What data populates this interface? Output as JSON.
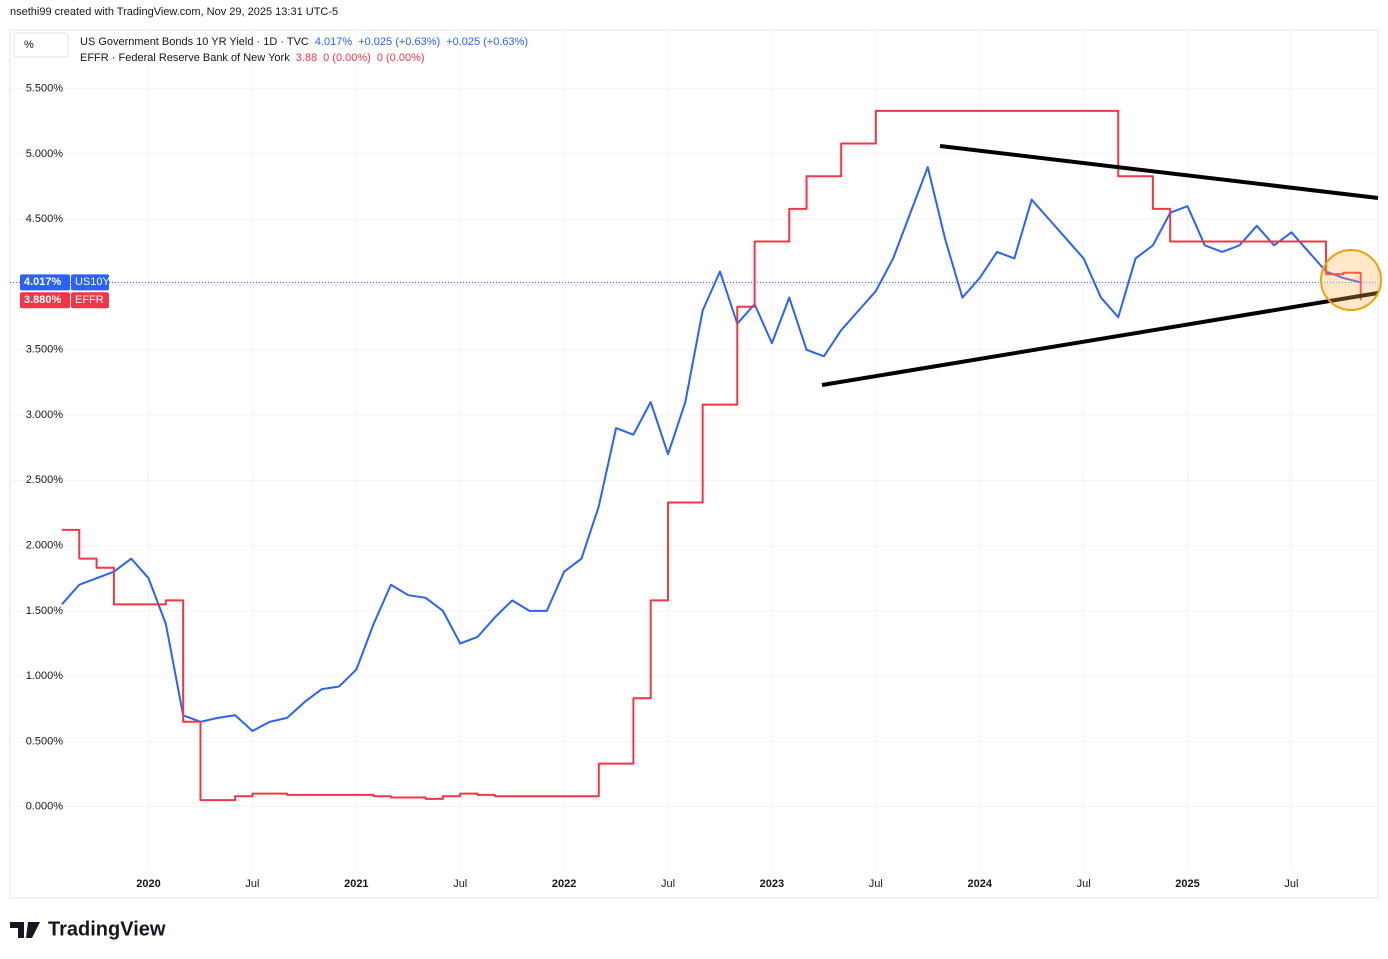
{
  "chart_data": {
    "type": "line",
    "title": "nsethi99 created with TradingView.com, Nov 29, 2025 13:31 UTC-5",
    "unit_button": "%",
    "brand": "TradingView",
    "x": [
      "2019-08",
      "2019-09",
      "2019-10",
      "2019-11",
      "2019-12",
      "2020-01",
      "2020-02",
      "2020-03",
      "2020-04",
      "2020-05",
      "2020-06",
      "2020-07",
      "2020-08",
      "2020-09",
      "2020-10",
      "2020-11",
      "2020-12",
      "2021-01",
      "2021-02",
      "2021-03",
      "2021-04",
      "2021-05",
      "2021-06",
      "2021-07",
      "2021-08",
      "2021-09",
      "2021-10",
      "2021-11",
      "2021-12",
      "2022-01",
      "2022-02",
      "2022-03",
      "2022-04",
      "2022-05",
      "2022-06",
      "2022-07",
      "2022-08",
      "2022-09",
      "2022-10",
      "2022-11",
      "2022-12",
      "2023-01",
      "2023-02",
      "2023-03",
      "2023-04",
      "2023-05",
      "2023-06",
      "2023-07",
      "2023-08",
      "2023-09",
      "2023-10",
      "2023-11",
      "2023-12",
      "2024-01",
      "2024-02",
      "2024-03",
      "2024-04",
      "2024-05",
      "2024-06",
      "2024-07",
      "2024-08",
      "2024-09",
      "2024-10",
      "2024-11",
      "2024-12",
      "2025-01",
      "2025-02",
      "2025-03",
      "2025-04",
      "2025-05",
      "2025-06",
      "2025-07",
      "2025-08",
      "2025-09",
      "2025-10",
      "2025-11"
    ],
    "series": [
      {
        "name": "US10Y",
        "description": "US Government Bonds 10 YR Yield · 1D · TVC",
        "color": "#2962ff",
        "legend_value": "4.017%",
        "changes": [
          "+0.025 (+0.63%)",
          "+0.025 (+0.63%)"
        ],
        "last_label": "4.017%",
        "values": [
          1.55,
          1.7,
          1.75,
          1.8,
          1.9,
          1.75,
          1.4,
          0.7,
          0.65,
          0.68,
          0.7,
          0.58,
          0.65,
          0.68,
          0.8,
          0.9,
          0.92,
          1.05,
          1.4,
          1.7,
          1.62,
          1.6,
          1.5,
          1.25,
          1.3,
          1.45,
          1.58,
          1.5,
          1.5,
          1.8,
          1.9,
          2.3,
          2.9,
          2.85,
          3.1,
          2.7,
          3.1,
          3.8,
          4.1,
          3.7,
          3.85,
          3.55,
          3.9,
          3.5,
          3.45,
          3.65,
          3.8,
          3.95,
          4.2,
          4.55,
          4.9,
          4.35,
          3.9,
          4.05,
          4.25,
          4.2,
          4.65,
          4.5,
          4.35,
          4.2,
          3.9,
          3.75,
          4.2,
          4.3,
          4.55,
          4.6,
          4.3,
          4.25,
          4.3,
          4.45,
          4.3,
          4.4,
          4.25,
          4.1,
          4.05,
          4.017
        ]
      },
      {
        "name": "EFFR",
        "description": "EFFR · Federal Reserve Bank of New York",
        "color": "#f23645",
        "legend_value": "3.88",
        "changes": [
          "0 (0.00%)",
          "0 (0.00%)"
        ],
        "last_label": "3.880%",
        "step": true,
        "values": [
          2.12,
          1.9,
          1.83,
          1.55,
          1.55,
          1.55,
          1.58,
          0.65,
          0.05,
          0.05,
          0.08,
          0.1,
          0.1,
          0.09,
          0.09,
          0.09,
          0.09,
          0.09,
          0.08,
          0.07,
          0.07,
          0.06,
          0.08,
          0.1,
          0.09,
          0.08,
          0.08,
          0.08,
          0.08,
          0.08,
          0.08,
          0.33,
          0.33,
          0.83,
          1.58,
          2.33,
          2.33,
          3.08,
          3.08,
          3.83,
          4.33,
          4.33,
          4.58,
          4.83,
          4.83,
          5.08,
          5.08,
          5.33,
          5.33,
          5.33,
          5.33,
          5.33,
          5.33,
          5.33,
          5.33,
          5.33,
          5.33,
          5.33,
          5.33,
          5.33,
          5.33,
          4.83,
          4.83,
          4.58,
          4.33,
          4.33,
          4.33,
          4.33,
          4.33,
          4.33,
          4.33,
          4.33,
          4.33,
          4.08,
          4.09,
          3.88
        ]
      }
    ],
    "xlim": [
      "2019-05",
      "2025-12"
    ],
    "xticks": [
      {
        "value": "2020-01",
        "label": "2020"
      },
      {
        "value": "2020-07",
        "label": "Jul"
      },
      {
        "value": "2021-01",
        "label": "2021"
      },
      {
        "value": "2021-07",
        "label": "Jul"
      },
      {
        "value": "2022-01",
        "label": "2022"
      },
      {
        "value": "2022-07",
        "label": "Jul"
      },
      {
        "value": "2023-01",
        "label": "2023"
      },
      {
        "value": "2023-07",
        "label": "Jul"
      },
      {
        "value": "2024-01",
        "label": "2024"
      },
      {
        "value": "2024-07",
        "label": "Jul"
      },
      {
        "value": "2025-01",
        "label": "2025"
      },
      {
        "value": "2025-07",
        "label": "Jul"
      }
    ],
    "ylim": [
      -0.47,
      5.95
    ],
    "yticks": [
      {
        "value": 0,
        "label": "0.000%"
      },
      {
        "value": 0.5,
        "label": "0.500%"
      },
      {
        "value": 1,
        "label": "1.000%"
      },
      {
        "value": 1.5,
        "label": "1.500%"
      },
      {
        "value": 2,
        "label": "2.000%"
      },
      {
        "value": 2.5,
        "label": "2.500%"
      },
      {
        "value": 3,
        "label": "3.000%"
      },
      {
        "value": 3.5,
        "label": "3.500%"
      },
      {
        "value": 4,
        "label": "4.000%"
      },
      {
        "value": 4.5,
        "label": "4.500%"
      },
      {
        "value": 5,
        "label": "5.000%"
      },
      {
        "value": 5.5,
        "label": "5.500%"
      }
    ],
    "grid": true
  }
}
